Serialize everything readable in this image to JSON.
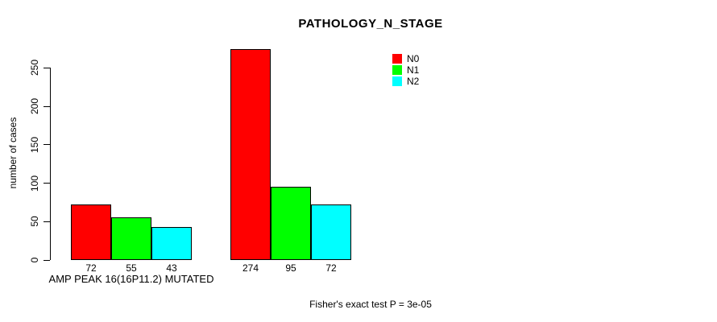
{
  "chart_data": {
    "type": "bar",
    "title": "PATHOLOGY_N_STAGE",
    "ylabel": "number of cases",
    "xlabel": "",
    "ylim": [
      0,
      275
    ],
    "yticks": [
      0,
      50,
      100,
      150,
      200,
      250
    ],
    "grid": false,
    "legend_position": "top-right",
    "categories": [
      "AMP PEAK 16(16P11.2) MUTATED",
      ""
    ],
    "groups": [
      {
        "label": "AMP PEAK 16(16P11.2) MUTATED",
        "values": [
          72,
          55,
          43
        ]
      },
      {
        "label": "",
        "values": [
          274,
          95,
          72
        ]
      }
    ],
    "series": [
      {
        "name": "N0",
        "color": "#ff0000",
        "values": [
          72,
          274
        ]
      },
      {
        "name": "N1",
        "color": "#00ff00",
        "values": [
          55,
          95
        ]
      },
      {
        "name": "N2",
        "color": "#00ffff",
        "values": [
          43,
          72
        ]
      }
    ],
    "annotation": "Fisher's exact test P = 3e-05"
  },
  "colors": {
    "axis": "#000000",
    "background": "#ffffff",
    "bar_border": "#000000"
  }
}
